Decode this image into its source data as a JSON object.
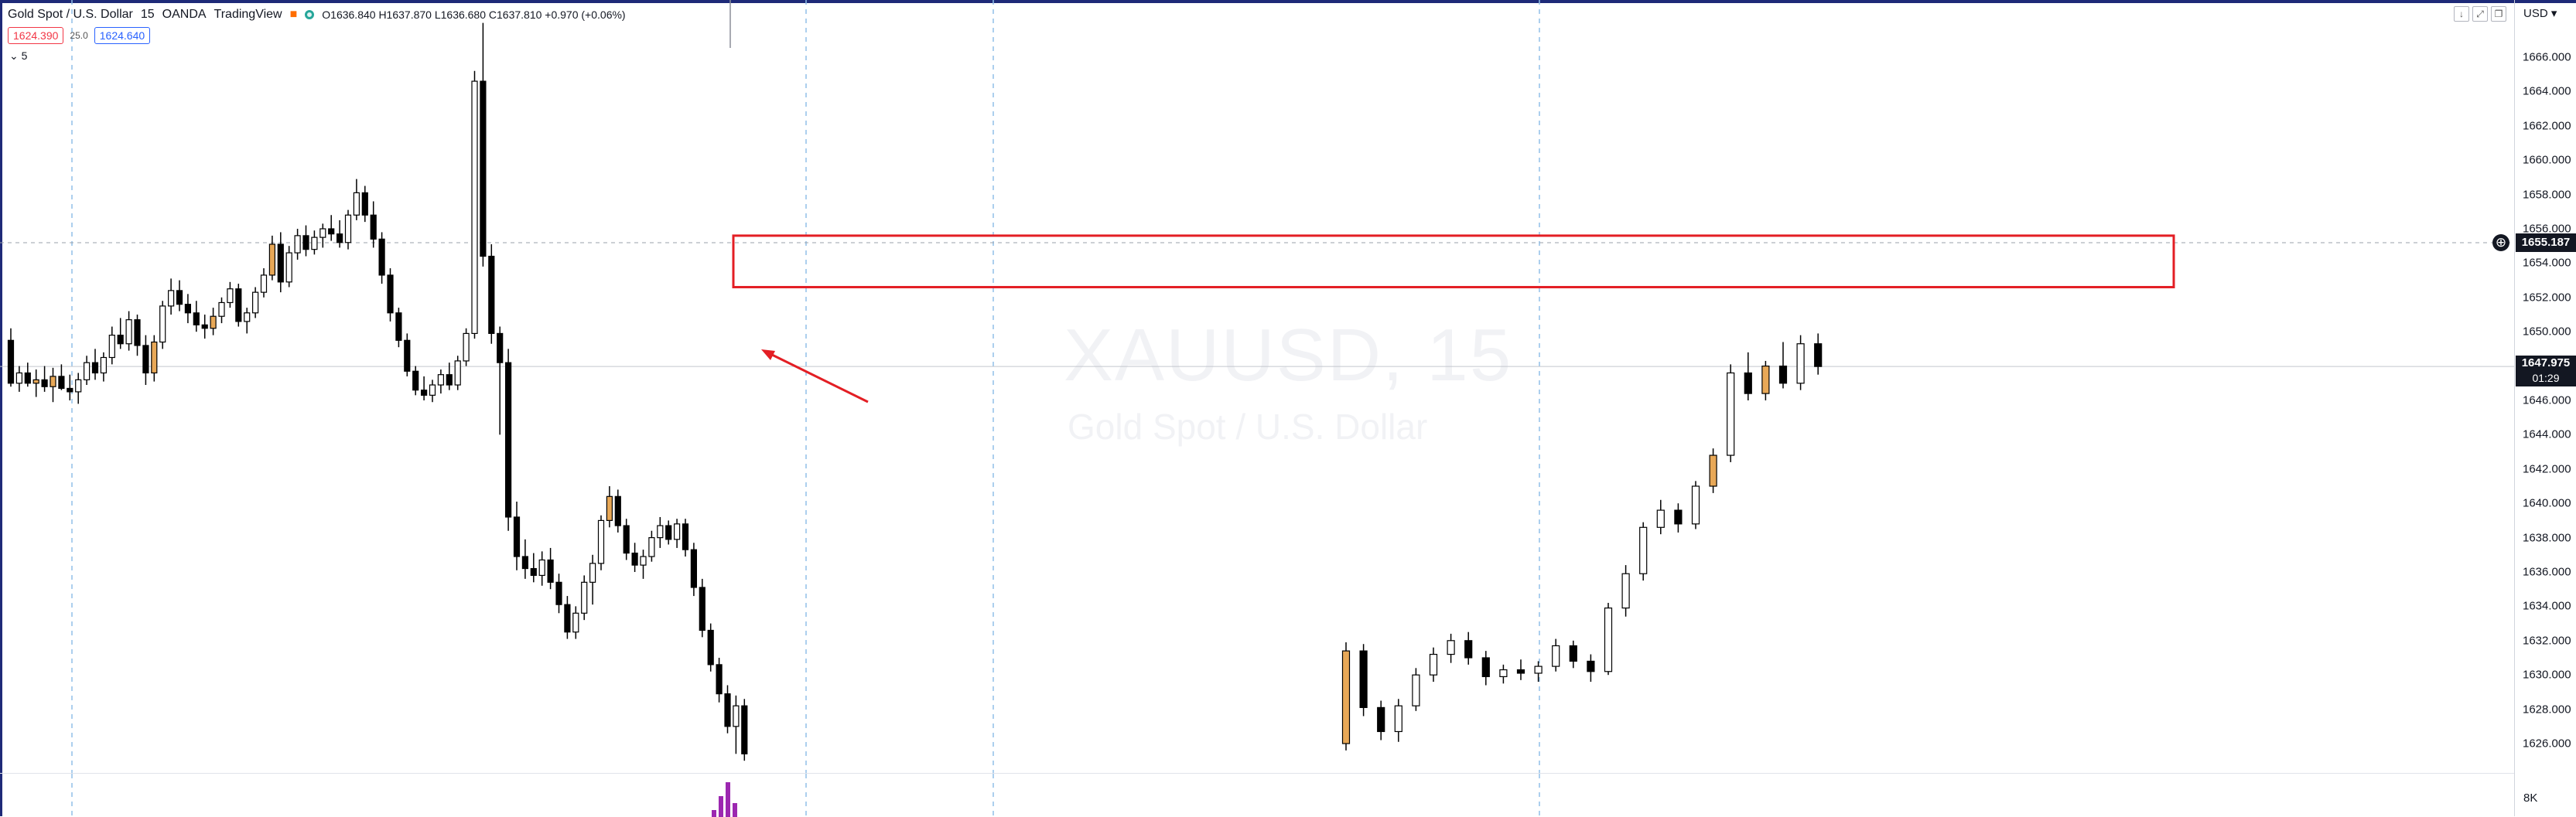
{
  "legend": {
    "symbol": "Gold Spot / U.S. Dollar",
    "interval": "15",
    "source": "OANDA",
    "platform": "TradingView",
    "ohlc": "O1636.840  H1637.870  L1636.680  C1637.810  +0.970 (+0.06%)",
    "bid": "1624.390",
    "spread": "25.0",
    "ask": "1624.640",
    "collapse_label": "5"
  },
  "watermark": {
    "ticker": "XAUUSD, 15",
    "name": "Gold Spot / U.S. Dollar"
  },
  "axis": {
    "currency": "USD",
    "ticks": [
      "1666.000",
      "1664.000",
      "1662.000",
      "1660.000",
      "1658.000",
      "1656.000",
      "1654.000",
      "1652.000",
      "1650.000",
      "1648.000",
      "1646.000",
      "1644.000",
      "1642.000",
      "1640.000",
      "1638.000",
      "1636.000",
      "1634.000",
      "1632.000",
      "1630.000",
      "1628.000",
      "1626.000"
    ],
    "volume_tick": "8K"
  },
  "tags": {
    "hline_price": "1655.187",
    "last_price": "1647.975",
    "countdown": "01:29"
  },
  "colors": {
    "up_fill": "#ffffff",
    "down_fill": "#000000",
    "accent_candle": "#e8a857",
    "rect": "#e31e24",
    "volume": "#9c27b0",
    "frame": "#1e2a78"
  },
  "chart_data": {
    "type": "candlestick",
    "ylim": [
      1625,
      1668
    ],
    "hline": 1655.187,
    "last": 1647.975,
    "zone": {
      "from": 1652.6,
      "to": 1655.6
    },
    "candles": [
      [
        1649.5,
        1650.2,
        1646.8,
        1647.0
      ],
      [
        1647,
        1648,
        1646.5,
        1647.6
      ],
      [
        1647.6,
        1648.2,
        1646.8,
        1647.0
      ],
      [
        1647,
        1647.8,
        1646.2,
        1647.2
      ],
      [
        1647.2,
        1648.0,
        1646.5,
        1646.8
      ],
      [
        1646.8,
        1647.9,
        1645.9,
        1647.4
      ],
      [
        1647.4,
        1648.1,
        1646.6,
        1646.7
      ],
      [
        1646.7,
        1647.5,
        1646.0,
        1646.5
      ],
      [
        1646.5,
        1647.6,
        1645.8,
        1647.2
      ],
      [
        1647.2,
        1648.6,
        1646.9,
        1648.2
      ],
      [
        1648.2,
        1649.0,
        1647.2,
        1647.6
      ],
      [
        1647.6,
        1648.8,
        1647.1,
        1648.5
      ],
      [
        1648.5,
        1650.3,
        1648.1,
        1649.8
      ],
      [
        1649.8,
        1650.8,
        1649.0,
        1649.3
      ],
      [
        1649.3,
        1651.2,
        1648.9,
        1650.7
      ],
      [
        1650.7,
        1651.0,
        1648.6,
        1649.2
      ],
      [
        1649.2,
        1649.8,
        1646.9,
        1647.6
      ],
      [
        1647.6,
        1649.8,
        1647.1,
        1649.4
      ],
      [
        1649.4,
        1651.8,
        1649.0,
        1651.5
      ],
      [
        1651.5,
        1653.1,
        1651.0,
        1652.4
      ],
      [
        1652.4,
        1653.0,
        1651.2,
        1651.6
      ],
      [
        1651.6,
        1652.2,
        1650.5,
        1651.1
      ],
      [
        1651.1,
        1651.8,
        1650.0,
        1650.4
      ],
      [
        1650.4,
        1651.0,
        1649.6,
        1650.2
      ],
      [
        1650.2,
        1651.4,
        1649.8,
        1650.9
      ],
      [
        1650.9,
        1652.0,
        1650.5,
        1651.7
      ],
      [
        1651.7,
        1652.9,
        1651.4,
        1652.5
      ],
      [
        1652.5,
        1652.8,
        1650.3,
        1650.6
      ],
      [
        1650.6,
        1651.4,
        1649.9,
        1651.1
      ],
      [
        1651.1,
        1652.6,
        1650.8,
        1652.3
      ],
      [
        1652.3,
        1653.7,
        1652.0,
        1653.3
      ],
      [
        1653.3,
        1655.6,
        1653.0,
        1655.1
      ],
      [
        1655.1,
        1655.8,
        1652.3,
        1652.9
      ],
      [
        1652.9,
        1655.0,
        1652.6,
        1654.6
      ],
      [
        1654.6,
        1656.0,
        1654.2,
        1655.6
      ],
      [
        1655.6,
        1656.2,
        1654.4,
        1654.8
      ],
      [
        1654.8,
        1655.9,
        1654.5,
        1655.5
      ],
      [
        1655.5,
        1656.3,
        1654.9,
        1656.0
      ],
      [
        1656.0,
        1656.8,
        1655.3,
        1655.7
      ],
      [
        1655.7,
        1656.5,
        1654.9,
        1655.2
      ],
      [
        1655.2,
        1657.1,
        1654.8,
        1656.8
      ],
      [
        1656.8,
        1658.9,
        1656.5,
        1658.1
      ],
      [
        1658.1,
        1658.5,
        1656.4,
        1656.8
      ],
      [
        1656.8,
        1657.6,
        1654.9,
        1655.4
      ],
      [
        1655.4,
        1655.8,
        1652.8,
        1653.3
      ],
      [
        1653.3,
        1653.7,
        1650.6,
        1651.1
      ],
      [
        1651.1,
        1651.4,
        1649.1,
        1649.5
      ],
      [
        1649.5,
        1649.9,
        1647.4,
        1647.7
      ],
      [
        1647.7,
        1648.0,
        1646.3,
        1646.6
      ],
      [
        1646.6,
        1647.4,
        1646.0,
        1646.3
      ],
      [
        1646.3,
        1647.2,
        1645.9,
        1646.9
      ],
      [
        1646.9,
        1647.8,
        1646.4,
        1647.5
      ],
      [
        1647.5,
        1648.2,
        1646.6,
        1646.9
      ],
      [
        1646.9,
        1648.6,
        1646.6,
        1648.3
      ],
      [
        1648.3,
        1650.2,
        1648.0,
        1649.9
      ],
      [
        1649.9,
        1665.2,
        1649.6,
        1664.6
      ],
      [
        1664.6,
        1668.0,
        1653.8,
        1654.4
      ],
      [
        1654.4,
        1655.1,
        1649.3,
        1649.9
      ],
      [
        1649.9,
        1650.3,
        1644.0,
        1648.2
      ],
      [
        1648.2,
        1649.0,
        1638.4,
        1639.2
      ],
      [
        1639.2,
        1640.1,
        1636.1,
        1636.9
      ],
      [
        1636.9,
        1637.9,
        1635.6,
        1636.2
      ],
      [
        1636.2,
        1637.1,
        1635.4,
        1635.8
      ],
      [
        1635.8,
        1637.2,
        1635.2,
        1636.7
      ],
      [
        1636.7,
        1637.4,
        1635.0,
        1635.4
      ],
      [
        1635.4,
        1635.9,
        1633.6,
        1634.1
      ],
      [
        1634.1,
        1634.6,
        1632.1,
        1632.5
      ],
      [
        1632.5,
        1634.0,
        1632.1,
        1633.6
      ],
      [
        1633.6,
        1635.8,
        1633.2,
        1635.4
      ],
      [
        1635.4,
        1637.0,
        1634.1,
        1636.5
      ],
      [
        1636.5,
        1639.3,
        1636.1,
        1639.0
      ],
      [
        1639.0,
        1641.0,
        1638.6,
        1640.4
      ],
      [
        1640.4,
        1640.8,
        1638.3,
        1638.7
      ],
      [
        1638.7,
        1639.1,
        1636.7,
        1637.1
      ],
      [
        1637.1,
        1637.7,
        1636.0,
        1636.4
      ],
      [
        1636.4,
        1637.3,
        1635.6,
        1636.9
      ],
      [
        1636.9,
        1638.4,
        1636.6,
        1638.0
      ],
      [
        1638.0,
        1639.2,
        1637.4,
        1638.7
      ],
      [
        1638.7,
        1639.0,
        1637.6,
        1637.9
      ],
      [
        1637.9,
        1639.1,
        1637.4,
        1638.8
      ],
      [
        1638.8,
        1639.1,
        1636.9,
        1637.3
      ],
      [
        1637.3,
        1637.7,
        1634.6,
        1635.1
      ],
      [
        1635.1,
        1635.6,
        1632.2,
        1632.6
      ],
      [
        1632.6,
        1633.0,
        1630.2,
        1630.6
      ],
      [
        1630.6,
        1631.0,
        1628.4,
        1628.9
      ],
      [
        1628.9,
        1629.4,
        1626.6,
        1627.0
      ],
      [
        1627.0,
        1628.8,
        1625.4,
        1628.2
      ],
      [
        1628.2,
        1628.6,
        1625.0,
        1625.4
      ]
    ],
    "candles_right": [
      [
        1626.0,
        1631.9,
        1625.6,
        1631.4
      ],
      [
        1631.4,
        1631.8,
        1627.6,
        1628.1
      ],
      [
        1628.1,
        1628.5,
        1626.2,
        1626.7
      ],
      [
        1626.7,
        1628.6,
        1626.1,
        1628.2
      ],
      [
        1628.2,
        1630.4,
        1627.9,
        1630.0
      ],
      [
        1630.0,
        1631.6,
        1629.6,
        1631.2
      ],
      [
        1631.2,
        1632.4,
        1630.7,
        1632.0
      ],
      [
        1632.0,
        1632.5,
        1630.6,
        1631.0
      ],
      [
        1631.0,
        1631.4,
        1629.4,
        1629.9
      ],
      [
        1629.9,
        1630.6,
        1629.5,
        1630.3
      ],
      [
        1630.3,
        1630.9,
        1629.7,
        1630.1
      ],
      [
        1630.1,
        1630.8,
        1629.6,
        1630.5
      ],
      [
        1630.5,
        1632.1,
        1630.2,
        1631.7
      ],
      [
        1631.7,
        1632.0,
        1630.4,
        1630.8
      ],
      [
        1630.8,
        1631.2,
        1629.6,
        1630.2
      ],
      [
        1630.2,
        1634.2,
        1630.0,
        1633.9
      ],
      [
        1633.9,
        1636.4,
        1633.4,
        1635.9
      ],
      [
        1635.9,
        1638.9,
        1635.5,
        1638.6
      ],
      [
        1638.6,
        1640.2,
        1638.2,
        1639.6
      ],
      [
        1639.6,
        1640.0,
        1638.3,
        1638.8
      ],
      [
        1638.8,
        1641.3,
        1638.5,
        1641.0
      ],
      [
        1641.0,
        1643.2,
        1640.6,
        1642.8
      ],
      [
        1642.8,
        1648.1,
        1642.4,
        1647.6
      ],
      [
        1647.6,
        1648.8,
        1646.0,
        1646.4
      ],
      [
        1646.4,
        1648.3,
        1646.0,
        1648.0
      ],
      [
        1648.0,
        1649.4,
        1646.7,
        1647.0
      ],
      [
        1647.0,
        1649.8,
        1646.6,
        1649.3
      ],
      [
        1649.3,
        1649.9,
        1647.5,
        1647.975
      ]
    ],
    "volume_spike": [
      1,
      3,
      5,
      2
    ]
  }
}
